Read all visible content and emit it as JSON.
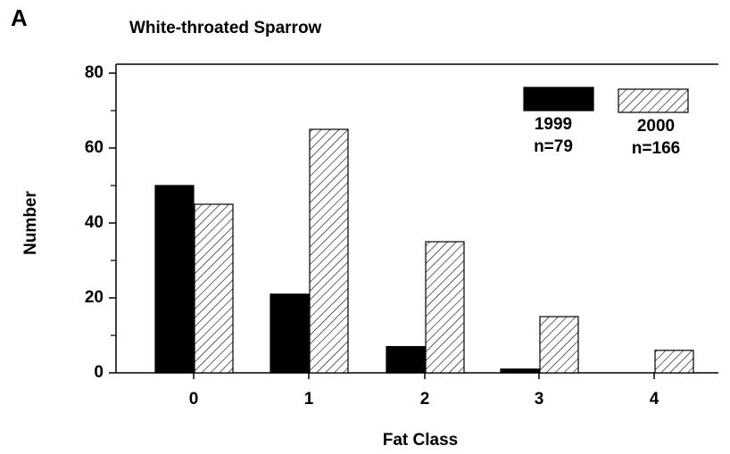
{
  "chart_data": {
    "type": "bar",
    "panel_label": "A",
    "title": "White-throated Sparrow",
    "x_label": "Fat Class",
    "y_label": "Number",
    "categories": [
      "0",
      "1",
      "2",
      "3",
      "4"
    ],
    "series": [
      {
        "name": "1999",
        "n_label": "n=79",
        "color": "#000000",
        "pattern": "solid",
        "values": [
          50,
          21,
          7,
          1,
          0
        ]
      },
      {
        "name": "2000",
        "n_label": "n=166",
        "color": "#000000",
        "pattern": "hatch",
        "values": [
          45,
          65,
          35,
          15,
          6
        ]
      }
    ],
    "ylim": [
      0,
      80
    ],
    "yticks": [
      0,
      20,
      40,
      60,
      80
    ],
    "yminorticks": [
      10,
      30,
      50,
      70
    ],
    "grid": false,
    "legend": "upper right"
  }
}
